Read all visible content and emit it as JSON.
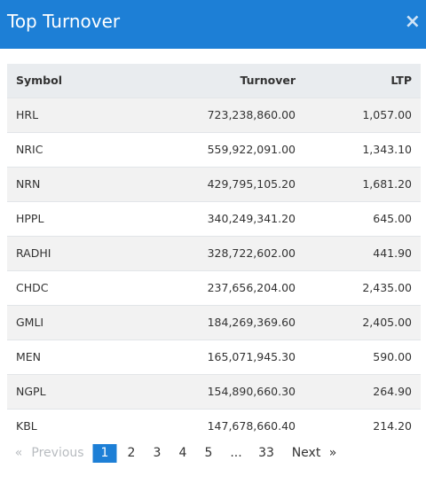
{
  "header": {
    "title": "Top Turnover",
    "close": "×"
  },
  "table": {
    "columns": [
      "Symbol",
      "Turnover",
      "LTP"
    ],
    "rows": [
      [
        "HRL",
        "723,238,860.00",
        "1,057.00"
      ],
      [
        "NRIC",
        "559,922,091.00",
        "1,343.10"
      ],
      [
        "NRN",
        "429,795,105.20",
        "1,681.20"
      ],
      [
        "HPPL",
        "340,249,341.20",
        "645.00"
      ],
      [
        "RADHI",
        "328,722,602.00",
        "441.90"
      ],
      [
        "CHDC",
        "237,656,204.00",
        "2,435.00"
      ],
      [
        "GMLI",
        "184,269,369.60",
        "2,405.00"
      ],
      [
        "MEN",
        "165,071,945.30",
        "590.00"
      ],
      [
        "NGPL",
        "154,890,660.30",
        "264.90"
      ],
      [
        "KBL",
        "147,678,660.40",
        "214.20"
      ]
    ]
  },
  "pagination": [
    "«",
    "Previous",
    "1",
    "2",
    "3",
    "4",
    "5",
    "...",
    "33",
    "Next",
    "»"
  ]
}
